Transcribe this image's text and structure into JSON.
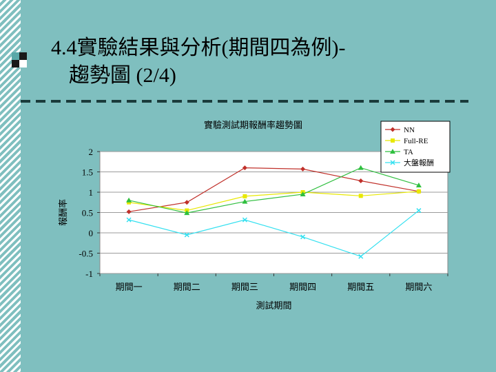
{
  "slide": {
    "title_line1": "4.4實驗結果與分析(期間四為例)-",
    "title_line2": "趨勢圖 (2/4)"
  },
  "colors": {
    "background": "#7fbfbf",
    "NN": "#c0302a",
    "Full-RE": "#e8e800",
    "TA": "#2fbf3f",
    "market": "#33e0f0"
  },
  "chart_data": {
    "type": "line",
    "title": "實驗測試期報酬率趨勢圖",
    "xlabel": "測試期間",
    "ylabel": "報酬率",
    "categories": [
      "期間一",
      "期間二",
      "期間三",
      "期間四",
      "期間五",
      "期間六"
    ],
    "ylim": [
      -1,
      2
    ],
    "yticks": [
      "2",
      "1.5",
      "1",
      "0.5",
      "0",
      "-0.5",
      "-1"
    ],
    "legend_position": "top-right",
    "series": [
      {
        "name": "NN",
        "marker": "diamond",
        "values": [
          0.52,
          0.75,
          1.6,
          1.57,
          1.28,
          1.02
        ]
      },
      {
        "name": "Full-RE",
        "marker": "square",
        "values": [
          0.75,
          0.55,
          0.9,
          1.0,
          0.91,
          1.02
        ]
      },
      {
        "name": "TA",
        "marker": "triangle",
        "values": [
          0.8,
          0.49,
          0.77,
          0.95,
          1.6,
          1.17
        ]
      },
      {
        "name": "大盤報酬",
        "marker": "x",
        "values": [
          0.32,
          -0.05,
          0.32,
          -0.1,
          -0.58,
          0.55
        ]
      }
    ]
  }
}
